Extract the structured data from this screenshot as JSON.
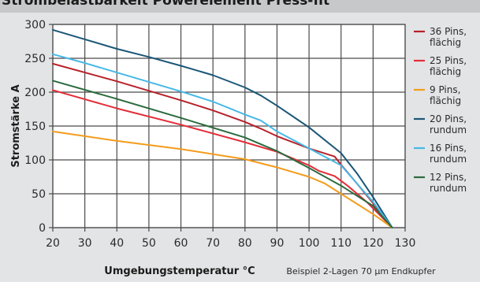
{
  "header": {
    "title": "Strombelastbarkeit Powerelement Press-fit"
  },
  "note": "Beispiel 2-Lagen 70 µm Endkupfer",
  "chart_data": {
    "type": "line",
    "xlabel": "Umgebungstemperatur °C",
    "ylabel": "Stromstärke A",
    "xlim": [
      20,
      130
    ],
    "ylim": [
      0,
      300
    ],
    "xticks": [
      20,
      30,
      40,
      50,
      60,
      70,
      80,
      90,
      100,
      110,
      120,
      130
    ],
    "yticks": [
      0,
      50,
      100,
      150,
      200,
      250,
      300
    ],
    "grid": true,
    "legend_position": "right",
    "series": [
      {
        "name": [
          "36 Pins,",
          "flächig"
        ],
        "color": "#b8212a",
        "x": [
          20,
          40,
          60,
          70,
          80,
          85,
          90,
          100,
          108,
          110,
          115,
          120,
          126
        ],
        "y": [
          242,
          216,
          188,
          173,
          156,
          146,
          135,
          117,
          105,
          93,
          65,
          36,
          0
        ]
      },
      {
        "name": [
          "25 Pins,",
          "flächig"
        ],
        "color": "#e32c38",
        "x": [
          20,
          40,
          60,
          80,
          90,
          100,
          103,
          108,
          112,
          118,
          126
        ],
        "y": [
          203,
          176,
          152,
          126,
          112,
          92,
          84,
          76,
          62,
          38,
          0
        ]
      },
      {
        "name": [
          "9 Pins,",
          "flächig"
        ],
        "color": "#f39c1c",
        "x": [
          20,
          40,
          60,
          80,
          90,
          100,
          105,
          110,
          115,
          120,
          126
        ],
        "y": [
          142,
          128,
          116,
          101,
          89,
          75,
          65,
          50,
          35,
          20,
          0
        ]
      },
      {
        "name": [
          "20 Pins,",
          "rundum"
        ],
        "color": "#1b5677",
        "x": [
          20,
          30,
          40,
          50,
          60,
          70,
          80,
          85,
          90,
          100,
          110,
          115,
          120,
          126
        ],
        "y": [
          292,
          278,
          264,
          252,
          239,
          225,
          207,
          195,
          180,
          148,
          110,
          80,
          45,
          0
        ]
      },
      {
        "name": [
          "16 Pins,",
          "rundum"
        ],
        "color": "#46b9e6",
        "x": [
          20,
          30,
          40,
          50,
          60,
          70,
          80,
          85,
          90,
          100,
          110,
          115,
          120,
          126
        ],
        "y": [
          256,
          243,
          229,
          215,
          201,
          186,
          167,
          158,
          142,
          117,
          92,
          65,
          38,
          0
        ]
      },
      {
        "name": [
          "12 Pins,",
          "rundum"
        ],
        "color": "#2b6b3f",
        "x": [
          20,
          40,
          60,
          80,
          90,
          100,
          110,
          120,
          126
        ],
        "y": [
          217,
          190,
          162,
          133,
          113,
          88,
          62,
          32,
          0
        ]
      }
    ]
  }
}
